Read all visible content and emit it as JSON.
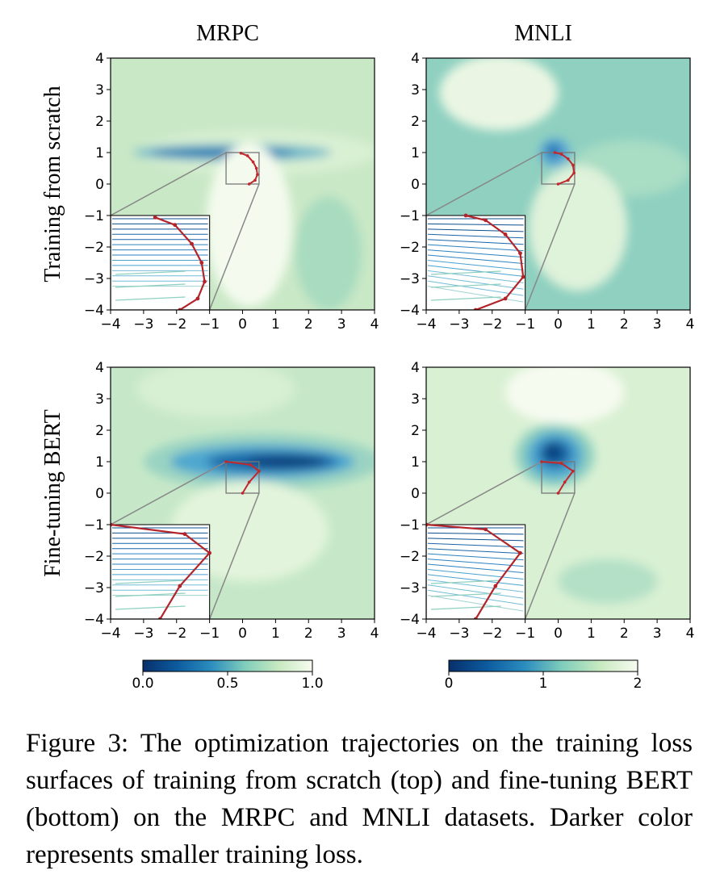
{
  "chart_data": {
    "type": "heatmap",
    "description_rows": [
      "Training from scratch",
      "Fine-tuning BERT"
    ],
    "description_cols": [
      "MRPC",
      "MNLI"
    ],
    "xlim": [
      -4,
      4
    ],
    "ylim": [
      -4,
      4
    ],
    "x_ticks": [
      "−4",
      "−3",
      "−2",
      "−1",
      "0",
      "1",
      "2",
      "3",
      "4"
    ],
    "y_ticks": [
      "4",
      "3",
      "2",
      "1",
      "0",
      "−1",
      "−2",
      "−3",
      "−4"
    ],
    "colormap": [
      "#08306b",
      "#0c5a9e",
      "#2b8cbe",
      "#7fcdbb",
      "#c7e9c0",
      "#f7fcf0"
    ],
    "colorbars": [
      {
        "dataset": "MRPC",
        "ticks": [
          "0.0",
          "0.5",
          "1.0"
        ],
        "range": [
          0,
          1
        ]
      },
      {
        "dataset": "MNLI",
        "ticks": [
          "0",
          "1",
          "2"
        ],
        "range": [
          0,
          2
        ]
      }
    ],
    "panels": [
      {
        "row": "Training from scratch",
        "col": "MRPC",
        "background": "#c9e8c6",
        "regions": [
          {
            "cx": 0.5,
            "cy": 1.0,
            "rx": 3.6,
            "ry": 0.7,
            "color": "#d9f0d3"
          },
          {
            "cx": -0.3,
            "cy": 1.0,
            "rx": 3.0,
            "ry": 0.28,
            "color": "#6fb9c9"
          },
          {
            "cx": -0.6,
            "cy": 1.0,
            "rx": 2.2,
            "ry": 0.14,
            "color": "#1f6fb0"
          },
          {
            "cx": 0.2,
            "cy": -1.3,
            "rx": 1.3,
            "ry": 2.6,
            "color": "#f4fbee"
          },
          {
            "cx": 2.6,
            "cy": -2.2,
            "rx": 1.0,
            "ry": 1.8,
            "color": "#a8dbbf"
          }
        ],
        "trajectory": [
          [
            0.2,
            0.0
          ],
          [
            0.38,
            0.12
          ],
          [
            0.45,
            0.3
          ],
          [
            0.42,
            0.5
          ],
          [
            0.32,
            0.7
          ],
          [
            0.15,
            0.9
          ],
          [
            -0.05,
            0.98
          ]
        ]
      },
      {
        "row": "Training from scratch",
        "col": "MNLI",
        "background": "#8fd0c0",
        "regions": [
          {
            "cx": -1.8,
            "cy": 2.9,
            "rx": 1.8,
            "ry": 1.2,
            "color": "#eaf6e3"
          },
          {
            "cx": 2.2,
            "cy": 0.5,
            "rx": 1.8,
            "ry": 0.9,
            "color": "#a9ddc4"
          },
          {
            "cx": 0.6,
            "cy": -1.4,
            "rx": 1.5,
            "ry": 2.0,
            "color": "#dff2da"
          },
          {
            "cx": -0.1,
            "cy": 1.0,
            "rx": 0.45,
            "ry": 0.45,
            "color": "#5aa8d6"
          },
          {
            "cx": -0.15,
            "cy": 1.05,
            "rx": 0.22,
            "ry": 0.22,
            "color": "#1f6fb0"
          }
        ],
        "trajectory": [
          [
            0.0,
            0.0
          ],
          [
            0.3,
            0.12
          ],
          [
            0.48,
            0.35
          ],
          [
            0.45,
            0.6
          ],
          [
            0.3,
            0.8
          ],
          [
            0.1,
            0.95
          ],
          [
            -0.1,
            1.0
          ]
        ]
      },
      {
        "row": "Fine-tuning BERT",
        "col": "MRPC",
        "background": "#c6e8c8",
        "regions": [
          {
            "cx": -0.8,
            "cy": 3.3,
            "rx": 2.4,
            "ry": 0.9,
            "color": "#d7efd2"
          },
          {
            "cx": 0.6,
            "cy": 1.0,
            "rx": 3.6,
            "ry": 0.9,
            "color": "#9ad3c2"
          },
          {
            "cx": 0.6,
            "cy": 1.0,
            "rx": 2.8,
            "ry": 0.55,
            "color": "#4ea7cf"
          },
          {
            "cx": 0.9,
            "cy": 1.0,
            "rx": 2.0,
            "ry": 0.32,
            "color": "#1866a8"
          },
          {
            "cx": 1.3,
            "cy": 1.0,
            "rx": 1.2,
            "ry": 0.18,
            "color": "#0b3f7a"
          },
          {
            "cx": 0.2,
            "cy": -1.2,
            "rx": 2.4,
            "ry": 1.6,
            "color": "#e3f4dc"
          }
        ],
        "trajectory": [
          [
            0.0,
            0.0
          ],
          [
            0.2,
            0.35
          ],
          [
            0.5,
            0.7
          ],
          [
            0.25,
            0.9
          ],
          [
            -0.5,
            1.0
          ]
        ]
      },
      {
        "row": "Fine-tuning BERT",
        "col": "MNLI",
        "background": "#d9f0d3",
        "regions": [
          {
            "cx": 0.2,
            "cy": 3.2,
            "rx": 1.8,
            "ry": 1.0,
            "color": "#f6fbf0"
          },
          {
            "cx": -0.1,
            "cy": 1.2,
            "rx": 1.2,
            "ry": 1.0,
            "color": "#8fd0c0"
          },
          {
            "cx": -0.1,
            "cy": 1.2,
            "rx": 0.85,
            "ry": 0.75,
            "color": "#4ea7cf"
          },
          {
            "cx": -0.1,
            "cy": 1.25,
            "rx": 0.5,
            "ry": 0.45,
            "color": "#1866a8"
          },
          {
            "cx": -0.15,
            "cy": 1.3,
            "rx": 0.25,
            "ry": 0.25,
            "color": "#0b3f7a"
          },
          {
            "cx": 1.5,
            "cy": -2.8,
            "rx": 1.5,
            "ry": 0.7,
            "color": "#b3e0c6"
          }
        ],
        "trajectory": [
          [
            0.0,
            0.0
          ],
          [
            0.2,
            0.35
          ],
          [
            0.45,
            0.7
          ],
          [
            0.1,
            0.95
          ],
          [
            -0.5,
            1.0
          ]
        ]
      }
    ]
  },
  "caption": "Figure 3: The optimization trajectories on the training loss surfaces of training from scratch (top) and fine-tuning BERT (bottom) on the MRPC and MNLI datasets. Darker color represents smaller training loss."
}
